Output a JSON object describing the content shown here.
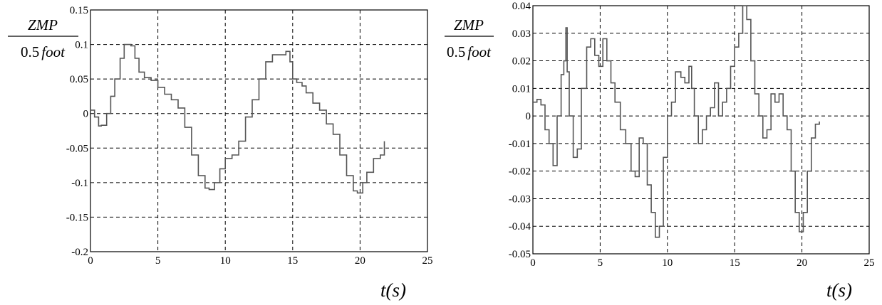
{
  "chart_data": [
    {
      "type": "line",
      "title": "",
      "xlabel": "t(s)",
      "ylabel": {
        "numerator": "ZMP",
        "denominator_num": "0.5",
        "denominator_var": "foot"
      },
      "xlim": [
        0,
        25
      ],
      "ylim": [
        -0.2,
        0.15
      ],
      "xticks": [
        0,
        5,
        10,
        15,
        20,
        25
      ],
      "yticks": [
        -0.2,
        -0.15,
        -0.1,
        -0.05,
        0,
        0.05,
        0.1,
        0.15
      ],
      "xtick_labels": [
        "0",
        "5",
        "10",
        "15",
        "20",
        "25"
      ],
      "ytick_labels": [
        "-0.2",
        "-0.15",
        "-0.1",
        "-0.05",
        "0",
        "0.05",
        "0.1",
        "0.15"
      ],
      "grid": true,
      "line_color": "#555555",
      "series": [
        {
          "x": [
            0,
            0.3,
            0.6,
            0.8,
            1.2,
            1.5,
            1.8,
            2.2,
            2.5,
            2.7,
            3.0,
            3.3,
            3.6,
            4.0,
            4.5,
            5.0,
            5.5,
            6.0,
            6.5,
            7.0,
            7.5,
            8.0,
            8.5,
            8.8,
            9.2,
            9.6,
            10.0,
            10.5,
            11.0,
            11.5,
            12.0,
            12.5,
            13.0,
            13.5,
            14.0,
            14.5,
            14.8,
            15.0,
            15.3,
            15.7,
            16.0,
            16.5,
            17.0,
            17.5,
            18.0,
            18.5,
            19.0,
            19.5,
            19.8,
            20.2,
            20.5,
            21.0,
            21.5,
            21.8
          ],
          "y": [
            0.005,
            -0.005,
            -0.018,
            -0.017,
            0.0,
            0.025,
            0.05,
            0.08,
            0.1,
            0.1,
            0.098,
            0.08,
            0.06,
            0.052,
            0.048,
            0.038,
            0.028,
            0.02,
            0.008,
            -0.02,
            -0.06,
            -0.09,
            -0.108,
            -0.11,
            -0.1,
            -0.08,
            -0.065,
            -0.06,
            -0.04,
            -0.005,
            0.02,
            0.05,
            0.075,
            0.085,
            0.085,
            0.09,
            0.075,
            0.05,
            0.045,
            0.04,
            0.03,
            0.015,
            0.005,
            -0.015,
            -0.03,
            -0.06,
            -0.09,
            -0.112,
            -0.115,
            -0.1,
            -0.085,
            -0.065,
            -0.06,
            -0.04
          ]
        }
      ]
    },
    {
      "type": "line",
      "title": "",
      "xlabel": "t(s)",
      "ylabel": {
        "numerator": "ZMP",
        "denominator_num": "0.5",
        "denominator_var": "foot"
      },
      "xlim": [
        0,
        25
      ],
      "ylim": [
        -0.05,
        0.04
      ],
      "xticks": [
        0,
        5,
        10,
        15,
        20,
        25
      ],
      "yticks": [
        -0.05,
        -0.04,
        -0.03,
        -0.02,
        -0.01,
        0,
        0.01,
        0.02,
        0.03,
        0.04
      ],
      "xtick_labels": [
        "0",
        "5",
        "10",
        "15",
        "20",
        "25"
      ],
      "ytick_labels": [
        "-0.05",
        "-0.04",
        "-0.03",
        "-0.02",
        "-0.01",
        "0",
        "0.01",
        "0.02",
        "0.03",
        "0.04"
      ],
      "grid": true,
      "line_color": "#555555",
      "series": [
        {
          "x": [
            0,
            0.3,
            0.6,
            0.9,
            1.2,
            1.5,
            1.8,
            2.1,
            2.3,
            2.45,
            2.55,
            2.7,
            3.0,
            3.3,
            3.6,
            4.0,
            4.3,
            4.6,
            4.9,
            5.2,
            5.5,
            5.8,
            6.1,
            6.5,
            6.9,
            7.3,
            7.6,
            7.9,
            8.2,
            8.5,
            8.8,
            9.1,
            9.4,
            9.7,
            10.0,
            10.3,
            10.6,
            11.0,
            11.3,
            11.6,
            11.8,
            12.0,
            12.3,
            12.6,
            12.9,
            13.2,
            13.5,
            13.8,
            14.1,
            14.4,
            14.7,
            15.0,
            15.3,
            15.6,
            15.9,
            16.2,
            16.5,
            16.8,
            17.1,
            17.4,
            17.7,
            18.0,
            18.3,
            18.6,
            18.9,
            19.2,
            19.5,
            19.8,
            20.1,
            20.4,
            20.7,
            21.0,
            21.3
          ],
          "y": [
            0.005,
            0.006,
            0.004,
            -0.005,
            -0.01,
            -0.018,
            0.0,
            0.015,
            0.02,
            0.032,
            0.016,
            0.0,
            -0.015,
            -0.012,
            0.01,
            0.025,
            0.028,
            0.022,
            0.018,
            0.028,
            0.02,
            0.012,
            0.005,
            -0.005,
            -0.01,
            -0.02,
            -0.022,
            -0.008,
            -0.01,
            -0.025,
            -0.035,
            -0.044,
            -0.04,
            -0.015,
            0.0,
            0.005,
            0.016,
            0.014,
            0.012,
            0.018,
            0.01,
            0.0,
            -0.01,
            -0.005,
            0.0,
            0.003,
            0.012,
            0.0,
            0.005,
            0.01,
            0.018,
            0.025,
            0.03,
            0.04,
            0.035,
            0.02,
            0.008,
            0.0,
            -0.008,
            -0.005,
            0.008,
            0.005,
            0.008,
            0.0,
            -0.005,
            -0.02,
            -0.035,
            -0.042,
            -0.035,
            -0.02,
            -0.008,
            -0.003,
            -0.002
          ]
        }
      ]
    }
  ]
}
